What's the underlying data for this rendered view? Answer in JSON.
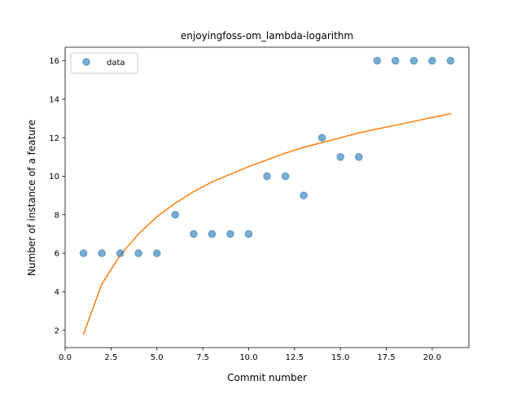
{
  "chart_data": {
    "type": "scatter",
    "title": "enjoyingfoss-om_lambda-logarithm",
    "xlabel": "Commit number",
    "ylabel": "Number of instance of a feature",
    "xlim": [
      0.0,
      22.0
    ],
    "ylim": [
      1.1,
      16.7
    ],
    "xticks": [
      0.0,
      2.5,
      5.0,
      7.5,
      10.0,
      12.5,
      15.0,
      17.5,
      20.0
    ],
    "xtick_labels": [
      "0.0",
      "2.5",
      "5.0",
      "7.5",
      "10.0",
      "12.5",
      "15.0",
      "17.5",
      "20.0"
    ],
    "yticks": [
      2,
      4,
      6,
      8,
      10,
      12,
      14,
      16
    ],
    "ytick_labels": [
      "2",
      "4",
      "6",
      "8",
      "10",
      "12",
      "14",
      "16"
    ],
    "grid": false,
    "legend": {
      "placement": "top-left",
      "entries": [
        "data"
      ]
    },
    "colors": {
      "scatter": "#1f77b4",
      "fit": "#ff7f0e"
    },
    "series": [
      {
        "name": "data",
        "kind": "scatter",
        "x": [
          1,
          2,
          3,
          4,
          5,
          6,
          7,
          8,
          9,
          10,
          11,
          12,
          13,
          14,
          15,
          16,
          17,
          18,
          19,
          20,
          21
        ],
        "y": [
          6,
          6,
          6,
          6,
          6,
          8,
          7,
          7,
          7,
          7,
          10,
          10,
          9,
          12,
          11,
          11,
          16,
          16,
          16,
          16,
          16
        ]
      },
      {
        "kind": "line",
        "x": [
          1,
          2,
          3,
          4,
          5,
          6,
          7,
          8,
          9,
          10,
          11,
          12,
          13,
          14,
          15,
          16,
          17,
          18,
          19,
          20,
          21
        ],
        "y": [
          1.8,
          4.4,
          5.9,
          7.0,
          7.9,
          8.6,
          9.2,
          9.7,
          10.1,
          10.5,
          10.85,
          11.2,
          11.5,
          11.75,
          12.0,
          12.25,
          12.45,
          12.65,
          12.85,
          13.05,
          13.25
        ]
      }
    ]
  }
}
